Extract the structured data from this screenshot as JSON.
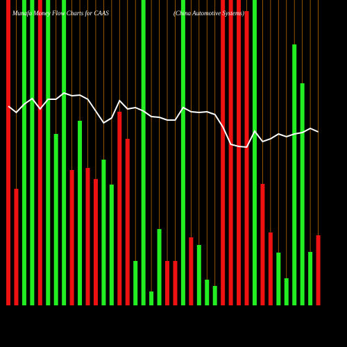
{
  "chart_data": {
    "type": "bar",
    "title": "Munafa Money Flow Charts for CAAS",
    "subtitle": "(China Automotive Systems)",
    "ylim": [
      0,
      440
    ],
    "bar_colors": {
      "up": "#22ee22",
      "down": "#ee1111"
    },
    "guide_color": "#b86a00",
    "line_color": "#ffffff",
    "directions": [
      "down",
      "down",
      "up",
      "up",
      "down",
      "up",
      "up",
      "up",
      "down",
      "up",
      "down",
      "down",
      "up",
      "up",
      "down",
      "down",
      "up",
      "up",
      "up",
      "up",
      "down",
      "down",
      "up",
      "down",
      "up",
      "up",
      "up",
      "down",
      "down",
      "down",
      "down",
      "up",
      "down",
      "down",
      "up",
      "up",
      "up",
      "up",
      "up",
      "down"
    ],
    "values": [
      440,
      168,
      440,
      440,
      440,
      440,
      247,
      440,
      195,
      266,
      198,
      182,
      210,
      174,
      279,
      240,
      64,
      440,
      20,
      110,
      64,
      64,
      440,
      98,
      87,
      37,
      28,
      440,
      440,
      440,
      424,
      440,
      175,
      105,
      76,
      39,
      376,
      320,
      77,
      101
    ],
    "line": [
      287,
      278,
      290,
      298,
      283,
      297,
      297,
      306,
      302,
      303,
      297,
      280,
      263,
      270,
      295,
      283,
      285,
      280,
      272,
      271,
      267,
      267,
      285,
      279,
      278,
      279,
      275,
      257,
      232,
      229,
      228,
      251,
      236,
      240,
      247,
      243,
      247,
      249,
      255,
      250
    ]
  }
}
